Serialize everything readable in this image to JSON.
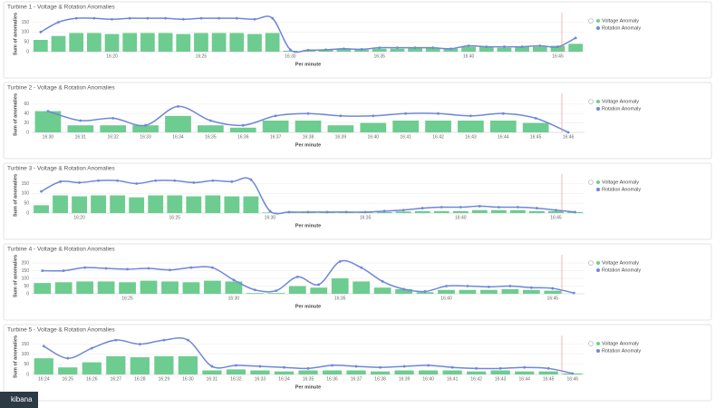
{
  "brand": "kibana",
  "chart_data": [
    {
      "type": "bar_line",
      "title": "Turbine 1 - Voltage & Rotation Anomalies",
      "y_label": "Sum of anomalies",
      "x_label": "Per minute",
      "categories": [
        null,
        null,
        null,
        null,
        "16:20",
        null,
        null,
        null,
        null,
        "16:25",
        null,
        null,
        null,
        null,
        "16:30",
        null,
        null,
        null,
        null,
        "16:35",
        null,
        null,
        null,
        null,
        "16:40",
        null,
        null,
        null,
        null,
        "16:45",
        null
      ],
      "ylim": [
        0,
        180
      ],
      "yticks": [
        0,
        50,
        100,
        150
      ],
      "series": [
        {
          "name": "Voltage Anomaly",
          "type": "bar",
          "color": "#6dcc8f",
          "values": [
            60,
            80,
            95,
            95,
            90,
            95,
            95,
            95,
            90,
            95,
            95,
            95,
            90,
            95,
            5,
            5,
            10,
            15,
            10,
            15,
            15,
            20,
            20,
            15,
            25,
            25,
            20,
            25,
            25,
            30,
            40
          ]
        },
        {
          "name": "Rotation Anomaly",
          "type": "line",
          "color": "#6f87d8",
          "values": [
            100,
            150,
            170,
            170,
            165,
            170,
            170,
            170,
            165,
            170,
            170,
            170,
            165,
            170,
            10,
            8,
            10,
            15,
            12,
            20,
            20,
            20,
            20,
            15,
            30,
            25,
            25,
            25,
            30,
            25,
            70
          ]
        }
      ]
    },
    {
      "type": "bar_line",
      "title": "Turbine 2 - Voltage & Rotation Anomalies",
      "y_label": "Sum of anomalies",
      "x_label": "Per minute",
      "categories": [
        "16:30",
        "16:31",
        "16:32",
        "16:33",
        "16:34",
        "16:35",
        "16:36",
        "16:37",
        "16:38",
        "16:39",
        "16:40",
        "16:41",
        "16:42",
        "16:43",
        "16:44",
        "16:45",
        "16:46"
      ],
      "ylim": [
        0,
        75
      ],
      "yticks": [
        0,
        20,
        40,
        60
      ],
      "series": [
        {
          "name": "Voltage Anomaly",
          "type": "bar",
          "color": "#6dcc8f",
          "values": [
            45,
            15,
            15,
            15,
            35,
            15,
            10,
            25,
            25,
            15,
            20,
            25,
            25,
            25,
            25,
            20,
            0
          ]
        },
        {
          "name": "Rotation Anomaly",
          "type": "line",
          "color": "#6f87d8",
          "values": [
            45,
            25,
            30,
            15,
            55,
            25,
            15,
            35,
            40,
            35,
            35,
            40,
            40,
            35,
            40,
            30,
            0
          ]
        }
      ]
    },
    {
      "type": "bar_line",
      "title": "Turbine 3 - Voltage & Rotation Anomalies",
      "y_label": "Sum of anomalies",
      "x_label": "Per minute",
      "categories": [
        null,
        null,
        "16:20",
        null,
        null,
        null,
        null,
        "16:25",
        null,
        null,
        null,
        null,
        "16:30",
        null,
        null,
        null,
        null,
        "16:35",
        null,
        null,
        null,
        null,
        "16:40",
        null,
        null,
        null,
        null,
        "16:45",
        null
      ],
      "ylim": [
        0,
        180
      ],
      "yticks": [
        0,
        50,
        100,
        150
      ],
      "series": [
        {
          "name": "Voltage Anomaly",
          "type": "bar",
          "color": "#6dcc8f",
          "values": [
            40,
            90,
            85,
            90,
            90,
            80,
            90,
            90,
            85,
            90,
            85,
            85,
            3,
            3,
            3,
            3,
            3,
            3,
            5,
            8,
            10,
            10,
            10,
            15,
            15,
            15,
            10,
            10,
            5
          ]
        },
        {
          "name": "Rotation Anomaly",
          "type": "line",
          "color": "#6f87d8",
          "values": [
            110,
            160,
            155,
            165,
            165,
            150,
            165,
            165,
            155,
            165,
            160,
            170,
            10,
            5,
            5,
            5,
            5,
            5,
            10,
            15,
            25,
            30,
            30,
            35,
            30,
            30,
            25,
            15,
            5
          ]
        }
      ]
    },
    {
      "type": "bar_line",
      "title": "Turbine 4 - Voltage & Rotation Anomalies",
      "y_label": "Sum of anomalies",
      "x_label": "Per minute",
      "categories": [
        null,
        null,
        null,
        null,
        "16:25",
        null,
        null,
        null,
        null,
        "16:30",
        null,
        null,
        null,
        null,
        "16:35",
        null,
        null,
        null,
        null,
        "16:40",
        null,
        null,
        null,
        null,
        "16:45",
        null
      ],
      "ylim": [
        0,
        230
      ],
      "yticks": [
        0,
        50,
        100,
        150,
        200
      ],
      "series": [
        {
          "name": "Voltage Anomaly",
          "type": "bar",
          "color": "#6dcc8f",
          "values": [
            70,
            75,
            80,
            80,
            75,
            85,
            80,
            75,
            85,
            80,
            5,
            5,
            50,
            40,
            100,
            80,
            40,
            30,
            10,
            25,
            25,
            25,
            30,
            25,
            20,
            0
          ]
        },
        {
          "name": "Rotation Anomaly",
          "type": "line",
          "color": "#6f87d8",
          "values": [
            150,
            150,
            170,
            165,
            160,
            165,
            155,
            170,
            170,
            90,
            25,
            20,
            110,
            60,
            210,
            170,
            80,
            30,
            15,
            50,
            50,
            45,
            50,
            40,
            35,
            5
          ]
        }
      ]
    },
    {
      "type": "bar_line",
      "title": "Turbine 5 - Voltage & Rotation Anomalies",
      "y_label": "Sum of anomalies",
      "x_label": "Per minute",
      "categories": [
        "16:24",
        "16:25",
        "16:26",
        "16:27",
        "16:28",
        "16:29",
        "16:30",
        "16:31",
        "16:32",
        "16:33",
        "16:34",
        "16:35",
        "16:36",
        "16:37",
        "16:38",
        "16:39",
        "16:40",
        "16:41",
        "16:42",
        "16:43",
        "16:44",
        "16:45",
        "16:46"
      ],
      "ylim": [
        0,
        175
      ],
      "yticks": [
        0,
        50,
        100,
        150
      ],
      "series": [
        {
          "name": "Voltage Anomaly",
          "type": "bar",
          "color": "#6dcc8f",
          "values": [
            80,
            35,
            60,
            90,
            85,
            90,
            90,
            20,
            25,
            20,
            15,
            20,
            20,
            20,
            15,
            20,
            20,
            20,
            15,
            20,
            15,
            15,
            5
          ]
        },
        {
          "name": "Rotation Anomaly",
          "type": "line",
          "color": "#6f87d8",
          "values": [
            140,
            80,
            130,
            170,
            150,
            170,
            170,
            40,
            45,
            40,
            35,
            30,
            45,
            40,
            35,
            40,
            45,
            35,
            30,
            30,
            35,
            30,
            5
          ]
        }
      ]
    }
  ]
}
